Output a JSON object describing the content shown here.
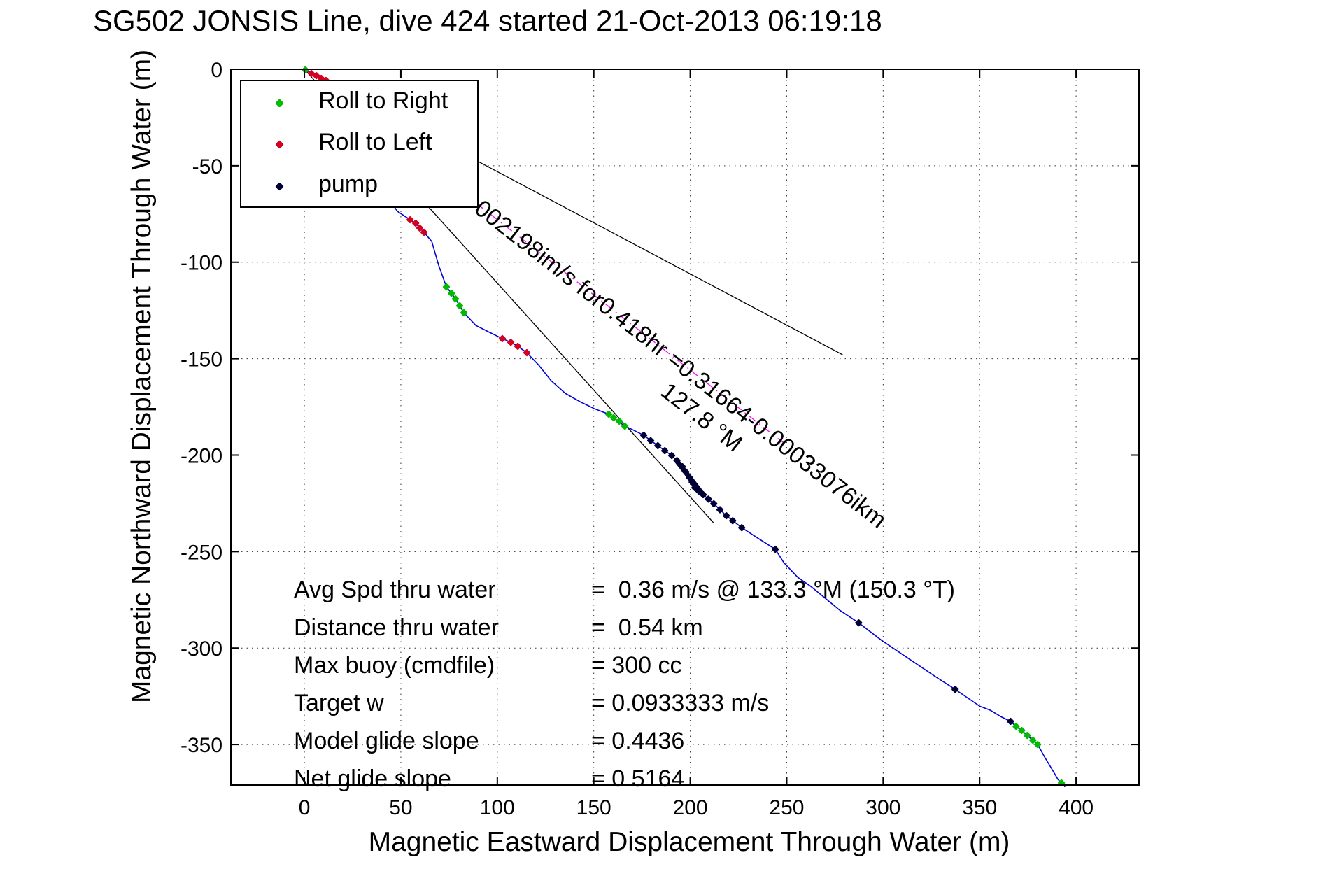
{
  "chart_data": {
    "type": "line",
    "title": "SG502 JONSIS Line, dive 424 started 21-Oct-2013 06:19:18",
    "xlabel": "Magnetic Eastward Displacement Through Water (m)",
    "ylabel": "Magnetic Northward Displacement Through Water (m)",
    "xlim": [
      -38.1,
      432.6
    ],
    "ylim": [
      -371,
      0
    ],
    "xticks": [
      0,
      50,
      100,
      150,
      200,
      250,
      300,
      350,
      400
    ],
    "yticks": [
      0,
      -50,
      -100,
      -150,
      -200,
      -250,
      -300,
      -350
    ],
    "grid": true,
    "track_color": "#0000dd",
    "track": [
      [
        0,
        0
      ],
      [
        6,
        -3
      ],
      [
        12,
        -5.4
      ],
      [
        15.6,
        -12
      ],
      [
        20.7,
        -22.9
      ],
      [
        25.4,
        -33.7
      ],
      [
        30.8,
        -45.3
      ],
      [
        36.3,
        -55.5
      ],
      [
        42.4,
        -65.3
      ],
      [
        48.2,
        -73.6
      ],
      [
        54.8,
        -78
      ],
      [
        57.7,
        -79.8
      ],
      [
        59.8,
        -82.3
      ],
      [
        62,
        -84.5
      ],
      [
        66,
        -89.2
      ],
      [
        67.8,
        -95.4
      ],
      [
        69.6,
        -101.6
      ],
      [
        73.6,
        -112.8
      ],
      [
        76.2,
        -116.1
      ],
      [
        78.3,
        -119
      ],
      [
        80.5,
        -122.6
      ],
      [
        82.7,
        -126.2
      ],
      [
        88.9,
        -132.8
      ],
      [
        96.1,
        -136.4
      ],
      [
        102.6,
        -139.6
      ],
      [
        107,
        -141.5
      ],
      [
        110.6,
        -143.6
      ],
      [
        115.3,
        -146.9
      ],
      [
        121.5,
        -153.4
      ],
      [
        128,
        -161.5
      ],
      [
        135.3,
        -168
      ],
      [
        143.3,
        -172.5
      ],
      [
        150.5,
        -176
      ],
      [
        157.8,
        -178.8
      ],
      [
        166.1,
        -185
      ],
      [
        167.9,
        -185.7
      ],
      [
        175.9,
        -189.7
      ],
      [
        183.2,
        -195.1
      ],
      [
        190.4,
        -200.2
      ],
      [
        195.9,
        -206
      ],
      [
        199.5,
        -211.5
      ],
      [
        202.4,
        -216.9
      ],
      [
        206.7,
        -220.5
      ],
      [
        212.2,
        -225.2
      ],
      [
        218.7,
        -231.4
      ],
      [
        226.7,
        -237.6
      ],
      [
        235,
        -243
      ],
      [
        244.1,
        -248.8
      ],
      [
        248.5,
        -255.7
      ],
      [
        255.7,
        -263.3
      ],
      [
        263,
        -268.4
      ],
      [
        277.5,
        -280.4
      ],
      [
        287.3,
        -286.9
      ],
      [
        299.2,
        -296
      ],
      [
        313.7,
        -305.8
      ],
      [
        328.3,
        -315.6
      ],
      [
        337.3,
        -321.4
      ],
      [
        350,
        -330.1
      ],
      [
        355.5,
        -332.2
      ],
      [
        360.9,
        -335.5
      ],
      [
        366,
        -338
      ],
      [
        368.9,
        -340.6
      ],
      [
        371.8,
        -342.7
      ],
      [
        374.7,
        -345.3
      ],
      [
        377.6,
        -347.8
      ],
      [
        380.1,
        -350
      ],
      [
        383.7,
        -356.5
      ],
      [
        388.1,
        -363.8
      ],
      [
        390.6,
        -368.1
      ],
      [
        394.3,
        -372
      ]
    ],
    "legend": [
      {
        "label": "Roll to Right",
        "color": "#00bb00"
      },
      {
        "label": "Roll to Left",
        "color": "#d40022"
      },
      {
        "label": "pump",
        "color": "#000033"
      }
    ],
    "markers": {
      "roll_right": {
        "color": "#00bb00",
        "points": [
          [
            0.5,
            -0.3
          ],
          [
            73.6,
            -112.8
          ],
          [
            76.2,
            -116.1
          ],
          [
            78.3,
            -119
          ],
          [
            80.5,
            -122.6
          ],
          [
            82.7,
            -126.2
          ],
          [
            157.8,
            -178.8
          ],
          [
            160.3,
            -180.6
          ],
          [
            163.2,
            -182.4
          ],
          [
            166.1,
            -185
          ],
          [
            368.9,
            -340.6
          ],
          [
            371.8,
            -342.7
          ],
          [
            374.7,
            -345.3
          ],
          [
            377.6,
            -347.8
          ],
          [
            380.1,
            -350
          ],
          [
            392.4,
            -369.9
          ]
        ]
      },
      "roll_left": {
        "color": "#d40022",
        "points": [
          [
            3.6,
            -2.2
          ],
          [
            6.2,
            -3.3
          ],
          [
            8.7,
            -4.7
          ],
          [
            11.2,
            -5.8
          ],
          [
            54.8,
            -78
          ],
          [
            57.7,
            -79.8
          ],
          [
            59.8,
            -82.3
          ],
          [
            62,
            -84.5
          ],
          [
            102.6,
            -139.6
          ],
          [
            107,
            -141.5
          ],
          [
            110.6,
            -143.6
          ],
          [
            115.3,
            -146.9
          ]
        ]
      },
      "pump": {
        "color": "#000033",
        "points": [
          [
            175.9,
            -189.7
          ],
          [
            179.5,
            -192.5
          ],
          [
            183.2,
            -195.1
          ],
          [
            186.8,
            -197.7
          ],
          [
            190.4,
            -200.2
          ],
          [
            193.1,
            -202.8
          ],
          [
            195.9,
            -206
          ],
          [
            197.7,
            -208.7
          ],
          [
            199.5,
            -211.5
          ],
          [
            201,
            -214
          ],
          [
            202.4,
            -216.9
          ],
          [
            204.5,
            -218.7
          ],
          [
            206.7,
            -220.5
          ],
          [
            209.4,
            -222.8
          ],
          [
            212.2,
            -225.2
          ],
          [
            215.4,
            -228.3
          ],
          [
            218.7,
            -231.4
          ],
          [
            222,
            -234
          ],
          [
            226.7,
            -237.6
          ],
          [
            244.1,
            -248.8
          ],
          [
            287.3,
            -286.9
          ],
          [
            337.3,
            -321.4
          ],
          [
            366,
            -338
          ]
        ],
        "band": {
          "from": [
            193,
            -203
          ],
          "to": [
            207,
            -221
          ],
          "width": 7
        }
      }
    },
    "overlay_lines": [
      {
        "name": "heading-line-steep",
        "from": [
          0,
          0
        ],
        "to": [
          212,
          -235
        ],
        "color": "#000000",
        "style": "solid"
      },
      {
        "name": "heading-line-shallow",
        "from": [
          0,
          0
        ],
        "to": [
          279,
          -148
        ],
        "color": "#000000",
        "style": "solid"
      },
      {
        "name": "displacement-line",
        "from": [
          0,
          0
        ],
        "to": [
          249.5,
          -194.5
        ],
        "color": "#ff00ff",
        "style": "dashdot"
      }
    ],
    "annotations": [
      {
        "name": "glide-result-text",
        "text": "002198im/s for0.418hr =0.31664-0.00033076ikm",
        "x": 87.4,
        "y": -73.6,
        "angle": 38.1,
        "font_size": 34
      },
      {
        "name": "bearing-text",
        "text": "127.8 °M",
        "x": 183.9,
        "y": -168.3,
        "angle": 38.1,
        "font_size": 34
      }
    ],
    "stats": [
      {
        "label": "Avg Spd thru water",
        "value": "=  0.36 m/s @ 133.3 °M (150.3 °T)"
      },
      {
        "label": "Distance thru water",
        "value": "=  0.54 km"
      },
      {
        "label": "Max buoy (cmdfile)",
        "value": "= 300 cc"
      },
      {
        "label": "Target w",
        "value": "= 0.0933333 m/s"
      },
      {
        "label": "Model glide slope",
        "value": "= 0.4436"
      },
      {
        "label": "Net glide slope",
        "value": "= 0.5164"
      }
    ]
  }
}
